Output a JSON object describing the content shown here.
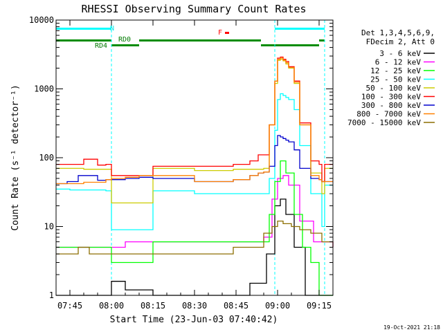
{
  "chart_data": {
    "type": "line",
    "title": "RHESSI Observing Summary Count Rates",
    "xlabel": "Start Time (23-Jun-03 07:40:42)",
    "ylabel": "Count Rate (s⁻¹ detector⁻¹)",
    "yscale": "log",
    "ylim": [
      1,
      10000
    ],
    "xlim": [
      "07:40",
      "09:20"
    ],
    "x_ticks": [
      "07:45",
      "08:00",
      "08:15",
      "08:30",
      "08:45",
      "09:00",
      "09:15"
    ],
    "y_ticks": [
      "1",
      "10",
      "100",
      "1000",
      "10000"
    ],
    "timestamp": "19-Oct-2021 21:18",
    "legend_header": [
      "Det 1,3,4,5,6,9,",
      "FDecim 2, Att 0"
    ],
    "legend_position": "right",
    "annotations": {
      "night_label": "N",
      "rd0_label": "RD0",
      "rd4_label": "RD4",
      "flare_label": "F"
    },
    "vertical_markers": [
      "07:40",
      "08:00",
      "08:59",
      "09:17"
    ],
    "flag_bars": {
      "night": [
        [
          "07:40",
          "08:00"
        ],
        [
          "08:59",
          "09:17"
        ]
      ],
      "rd_upper": [
        [
          "07:40",
          "08:00"
        ],
        [
          "08:10",
          "08:54"
        ],
        [
          "09:15",
          "09:17"
        ]
      ],
      "rd_lower": [
        [
          "08:00",
          "08:10"
        ],
        [
          "08:54",
          "09:15"
        ]
      ]
    },
    "series": [
      {
        "name": "3 - 6 keV",
        "color": "#000000",
        "x": [
          "07:40",
          "07:50",
          "07:58",
          "08:00",
          "08:05",
          "08:10",
          "08:15",
          "08:30",
          "08:44",
          "08:50",
          "08:56",
          "08:59",
          "09:01",
          "09:03",
          "09:06",
          "09:10",
          "09:15",
          "09:20"
        ],
        "y": [
          1,
          1,
          1,
          1.6,
          1.2,
          1.2,
          1,
          1,
          1,
          1.5,
          4,
          20,
          25,
          15,
          5,
          1,
          1,
          1
        ]
      },
      {
        "name": "6 - 12 keV",
        "color": "#ff00ff",
        "x": [
          "07:40",
          "07:50",
          "07:58",
          "08:00",
          "08:05",
          "08:10",
          "08:15",
          "08:30",
          "08:44",
          "08:50",
          "08:55",
          "08:58",
          "09:00",
          "09:02",
          "09:04",
          "09:08",
          "09:13",
          "09:16",
          "09:20"
        ],
        "y": [
          5,
          5,
          5,
          5,
          6,
          6,
          6,
          6,
          6,
          6,
          7,
          25,
          50,
          55,
          40,
          12,
          6,
          6,
          5
        ]
      },
      {
        "name": "12 - 25 keV",
        "color": "#00ff00",
        "x": [
          "07:40",
          "07:50",
          "07:58",
          "08:00",
          "08:05",
          "08:10",
          "08:15",
          "08:30",
          "08:44",
          "08:50",
          "08:55",
          "08:57",
          "08:59",
          "09:01",
          "09:03",
          "09:06",
          "09:09",
          "09:12",
          "09:15",
          "09:20"
        ],
        "y": [
          5,
          5,
          5,
          3,
          3,
          3,
          6,
          6,
          6,
          6,
          6,
          15,
          45,
          90,
          60,
          15,
          5,
          3,
          1,
          1
        ]
      },
      {
        "name": "25 - 50 keV",
        "color": "#00ffff",
        "x": [
          "07:40",
          "07:45",
          "07:50",
          "07:58",
          "08:00",
          "08:05",
          "08:10",
          "08:15",
          "08:30",
          "08:44",
          "08:50",
          "08:53",
          "08:55",
          "08:57",
          "08:59",
          "09:00",
          "09:01",
          "09:02",
          "09:03",
          "09:04",
          "09:06",
          "09:08",
          "09:12",
          "09:15",
          "09:16",
          "09:17",
          "09:20"
        ],
        "y": [
          35,
          34,
          34,
          33,
          9,
          9,
          9,
          33,
          30,
          30,
          30,
          30,
          30,
          50,
          250,
          700,
          850,
          800,
          750,
          700,
          500,
          150,
          30,
          30,
          10,
          40,
          40
        ]
      },
      {
        "name": "50 - 100 keV",
        "color": "#cccc00",
        "x": [
          "07:40",
          "07:50",
          "07:58",
          "08:00",
          "08:05",
          "08:10",
          "08:15",
          "08:30",
          "08:44",
          "08:50",
          "08:53",
          "08:55",
          "08:57",
          "08:59",
          "09:00",
          "09:01",
          "09:02",
          "09:03",
          "09:04",
          "09:06",
          "09:08",
          "09:12",
          "09:15",
          "09:16",
          "09:17",
          "09:20"
        ],
        "y": [
          70,
          68,
          68,
          22,
          22,
          22,
          70,
          65,
          68,
          68,
          68,
          70,
          300,
          1200,
          2600,
          2700,
          2550,
          2300,
          2000,
          1200,
          300,
          60,
          60,
          30,
          70,
          70
        ]
      },
      {
        "name": "100 - 300 keV",
        "color": "#ff0000",
        "x": [
          "07:40",
          "07:44",
          "07:50",
          "07:55",
          "07:58",
          "08:00",
          "08:05",
          "08:10",
          "08:15",
          "08:30",
          "08:44",
          "08:50",
          "08:53",
          "08:55",
          "08:57",
          "08:59",
          "09:00",
          "09:01",
          "09:02",
          "09:03",
          "09:04",
          "09:06",
          "09:08",
          "09:12",
          "09:15",
          "09:16",
          "09:17",
          "09:20"
        ],
        "y": [
          80,
          80,
          95,
          78,
          80,
          55,
          55,
          55,
          75,
          75,
          80,
          90,
          110,
          110,
          300,
          1300,
          2800,
          2900,
          2700,
          2500,
          2100,
          1300,
          320,
          90,
          80,
          45,
          80,
          80
        ]
      },
      {
        "name": "300 - 800 keV",
        "color": "#0000cc",
        "x": [
          "07:40",
          "07:44",
          "07:48",
          "07:55",
          "07:58",
          "08:00",
          "08:05",
          "08:10",
          "08:15",
          "08:30",
          "08:44",
          "08:50",
          "08:53",
          "08:55",
          "08:57",
          "08:59",
          "09:00",
          "09:01",
          "09:02",
          "09:03",
          "09:04",
          "09:06",
          "09:08",
          "09:12",
          "09:15",
          "09:16",
          "09:17",
          "09:20"
        ],
        "y": [
          42,
          45,
          55,
          47,
          48,
          48,
          50,
          52,
          50,
          45,
          48,
          55,
          60,
          62,
          75,
          150,
          210,
          200,
          190,
          180,
          170,
          130,
          70,
          50,
          48,
          45,
          45,
          45
        ]
      },
      {
        "name": "800 - 7000 keV",
        "color": "#ff8000",
        "x": [
          "07:40",
          "07:50",
          "07:58",
          "08:00",
          "08:05",
          "08:10",
          "08:15",
          "08:30",
          "08:44",
          "08:50",
          "08:53",
          "08:55",
          "08:57",
          "08:59",
          "09:00",
          "09:01",
          "09:02",
          "09:03",
          "09:04",
          "09:06",
          "09:08",
          "09:12",
          "09:15",
          "09:16",
          "09:17",
          "09:20"
        ],
        "y": [
          42,
          44,
          48,
          50,
          52,
          55,
          55,
          45,
          48,
          55,
          60,
          62,
          300,
          1300,
          2700,
          2800,
          2600,
          2400,
          2050,
          1250,
          300,
          55,
          48,
          45,
          45,
          45
        ]
      },
      {
        "name": "7000 - 15000 keV",
        "color": "#8c6e00",
        "x": [
          "07:40",
          "07:45",
          "07:48",
          "07:52",
          "07:58",
          "08:00",
          "08:05",
          "08:10",
          "08:15",
          "08:30",
          "08:44",
          "08:50",
          "08:55",
          "08:58",
          "09:00",
          "09:02",
          "09:05",
          "09:08",
          "09:12",
          "09:16",
          "09:20"
        ],
        "y": [
          4,
          4,
          5,
          4,
          4,
          4,
          4,
          4,
          4,
          4,
          5,
          5,
          8,
          10,
          12,
          11,
          10,
          9,
          8,
          6,
          5
        ]
      }
    ]
  }
}
